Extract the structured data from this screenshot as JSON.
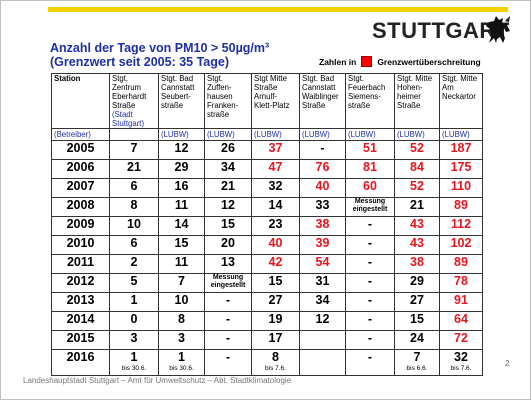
{
  "logo": {
    "text": "STUTTGART",
    "icon": "horse-crest-icon"
  },
  "title": {
    "line1": "Anzahl der Tage von PM10 > 50µg/m³",
    "line2": "(Grenzwert seit 2005: 35 Tage)"
  },
  "legend": {
    "prefix": "Zahlen in",
    "label": "Grenzwertüberschreitung",
    "color": "#ff0000"
  },
  "table": {
    "headers": [
      {
        "lines": [
          "Station"
        ]
      },
      {
        "lines": [
          "Stgt.",
          "Zentrum",
          "Eberhardt",
          "Straße"
        ],
        "extra": [
          "(Stadt",
          "Stuttgart)"
        ]
      },
      {
        "lines": [
          "Stgt. Bad",
          "Cannstatt",
          "Seubert-",
          "straße"
        ]
      },
      {
        "lines": [
          "Stgt.",
          "Zuffen-",
          "hausen",
          "Franken-",
          "straße"
        ]
      },
      {
        "lines": [
          "Stgt Mitte",
          "Straße",
          "Arnulf-",
          "Klett-Platz"
        ]
      },
      {
        "lines": [
          "Stgt. Bad",
          "Cannstatt",
          "Waiblinger",
          "Straße"
        ]
      },
      {
        "lines": [
          "Stgt.",
          "Feuerbach",
          "Siemens-",
          "straße"
        ]
      },
      {
        "lines": [
          "Stgt. Mitte",
          "Hohen-",
          "heimer",
          "Straße"
        ]
      },
      {
        "lines": [
          "Stgt. Mitte",
          "Am",
          "Neckartor"
        ]
      }
    ],
    "agencies": [
      "(Betreiber)",
      "",
      "(LUBW)",
      "(LUBW)",
      "(LUBW)",
      "(LUBW)",
      "(LUBW)",
      "(LUBW)",
      "(LUBW)"
    ],
    "rows": [
      {
        "year": "2005",
        "cells": [
          {
            "t": "7"
          },
          {
            "t": "12"
          },
          {
            "t": "26"
          },
          {
            "t": "37",
            "r": 1
          },
          {
            "t": "-"
          },
          {
            "t": "51",
            "r": 1
          },
          {
            "t": "52",
            "r": 1
          },
          {
            "t": "187",
            "r": 1
          }
        ]
      },
      {
        "year": "2006",
        "cells": [
          {
            "t": "21"
          },
          {
            "t": "29"
          },
          {
            "t": "34"
          },
          {
            "t": "47",
            "r": 1
          },
          {
            "t": "76",
            "r": 1
          },
          {
            "t": "81",
            "r": 1
          },
          {
            "t": "84",
            "r": 1
          },
          {
            "t": "175",
            "r": 1
          }
        ]
      },
      {
        "year": "2007",
        "cells": [
          {
            "t": "6"
          },
          {
            "t": "16"
          },
          {
            "t": "21"
          },
          {
            "t": "32"
          },
          {
            "t": "40",
            "r": 1
          },
          {
            "t": "60",
            "r": 1
          },
          {
            "t": "52",
            "r": 1
          },
          {
            "t": "110",
            "r": 1
          }
        ]
      },
      {
        "year": "2008",
        "cells": [
          {
            "t": "8"
          },
          {
            "t": "11"
          },
          {
            "t": "12"
          },
          {
            "t": "14"
          },
          {
            "t": "33"
          },
          {
            "t": "Messung eingestellt",
            "s": 1
          },
          {
            "t": "21"
          },
          {
            "t": "89",
            "r": 1
          }
        ]
      },
      {
        "year": "2009",
        "cells": [
          {
            "t": "10"
          },
          {
            "t": "14"
          },
          {
            "t": "15"
          },
          {
            "t": "23"
          },
          {
            "t": "38",
            "r": 1
          },
          {
            "t": "-"
          },
          {
            "t": "43",
            "r": 1
          },
          {
            "t": "112",
            "r": 1
          }
        ]
      },
      {
        "year": "2010",
        "cells": [
          {
            "t": "6"
          },
          {
            "t": "15"
          },
          {
            "t": "20"
          },
          {
            "t": "40",
            "r": 1
          },
          {
            "t": "39",
            "r": 1
          },
          {
            "t": "-"
          },
          {
            "t": "43",
            "r": 1
          },
          {
            "t": "102",
            "r": 1
          }
        ]
      },
      {
        "year": "2011",
        "cells": [
          {
            "t": "2"
          },
          {
            "t": "11"
          },
          {
            "t": "13"
          },
          {
            "t": "42",
            "r": 1
          },
          {
            "t": "54",
            "r": 1
          },
          {
            "t": "-"
          },
          {
            "t": "38",
            "r": 1
          },
          {
            "t": "89",
            "r": 1
          }
        ]
      },
      {
        "year": "2012",
        "cells": [
          {
            "t": "5"
          },
          {
            "t": "7"
          },
          {
            "t": "Messung eingestellt",
            "s": 1
          },
          {
            "t": "15"
          },
          {
            "t": "31"
          },
          {
            "t": "-"
          },
          {
            "t": "29"
          },
          {
            "t": "78",
            "r": 1
          }
        ]
      },
      {
        "year": "2013",
        "cells": [
          {
            "t": "1"
          },
          {
            "t": "10"
          },
          {
            "t": "-"
          },
          {
            "t": "27"
          },
          {
            "t": "34"
          },
          {
            "t": "-"
          },
          {
            "t": "27"
          },
          {
            "t": "91",
            "r": 1
          }
        ]
      },
      {
        "year": "2014",
        "cells": [
          {
            "t": "0"
          },
          {
            "t": "8"
          },
          {
            "t": "-"
          },
          {
            "t": "19"
          },
          {
            "t": "12"
          },
          {
            "t": "-"
          },
          {
            "t": "15"
          },
          {
            "t": "64",
            "r": 1
          }
        ]
      },
      {
        "year": "2015",
        "cells": [
          {
            "t": "3"
          },
          {
            "t": "3"
          },
          {
            "t": "-"
          },
          {
            "t": "17"
          },
          {
            "t": ""
          },
          {
            "t": "-"
          },
          {
            "t": "24"
          },
          {
            "t": "72",
            "r": 1
          }
        ]
      },
      {
        "year": "2016",
        "cells": [
          {
            "t": "1",
            "sub": "bis 30.6."
          },
          {
            "t": "1",
            "sub": "bis 30.6."
          },
          {
            "t": "-"
          },
          {
            "t": "8",
            "sub": "bis 7.6."
          },
          {
            "t": ""
          },
          {
            "t": "-"
          },
          {
            "t": "7",
            "sub": "bis 6.6."
          },
          {
            "t": "32",
            "sub": "bis 7.6."
          }
        ]
      }
    ]
  },
  "page_number": "2",
  "footer": "Landeshauptstadt Stuttgart – Amt für Umweltschutz – Abt. Stadtklimatologie"
}
